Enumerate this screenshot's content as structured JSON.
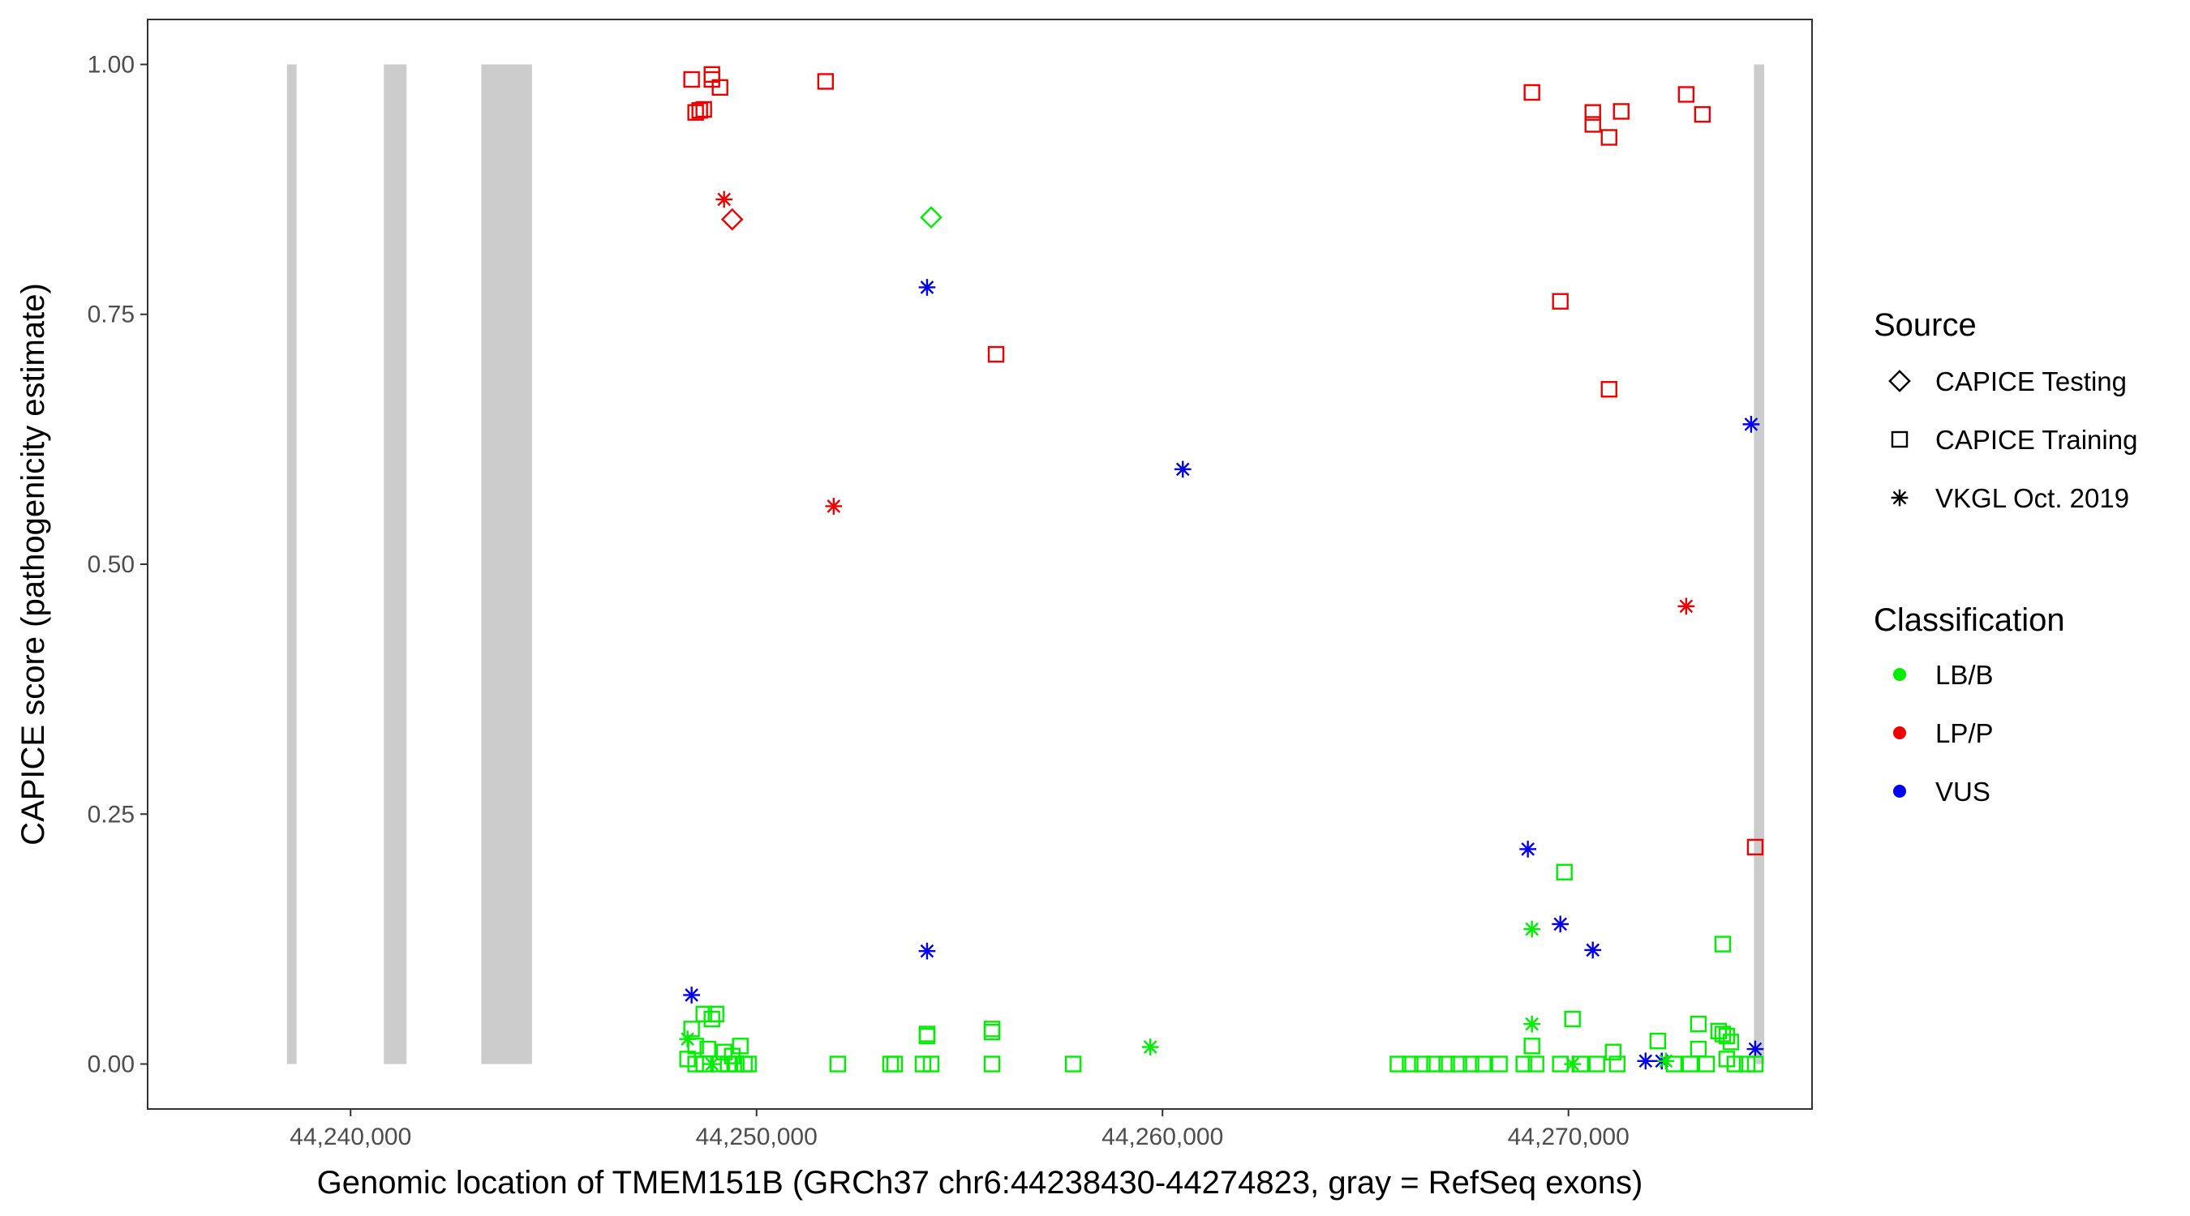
{
  "chart_data": {
    "type": "scatter",
    "xlabel": "Genomic location of TMEM151B (GRCh37 chr6:44238430-44274823, gray = RefSeq exons)",
    "ylabel": "CAPICE score (pathogenicity estimate)",
    "xlim": [
      44235000,
      44276000
    ],
    "ylim": [
      -0.045,
      1.045
    ],
    "x_ticks": [
      44240000,
      44250000,
      44260000,
      44270000
    ],
    "x_tick_labels": [
      "44,240,000",
      "44,250,000",
      "44,260,000",
      "44,270,000"
    ],
    "y_ticks": [
      0,
      0.25,
      0.5,
      0.75,
      1.0
    ],
    "y_tick_labels": [
      "0.00",
      "0.25",
      "0.50",
      "0.75",
      "1.00"
    ],
    "grid": false,
    "exons": [
      {
        "start": 44238430,
        "end": 44238650
      },
      {
        "start": 44240820,
        "end": 44241380
      },
      {
        "start": 44243220,
        "end": 44244470
      },
      {
        "start": 44274570,
        "end": 44274823
      }
    ],
    "colors": {
      "LB/B": "#00ee00",
      "LP/P": "#ee0000",
      "VUS": "#0000ee",
      "exon": "#cccccc"
    },
    "legend": {
      "placement": "right",
      "source": {
        "title": "Source",
        "items": [
          {
            "label": "CAPICE Testing",
            "shape": "diamond"
          },
          {
            "label": "CAPICE Training",
            "shape": "square"
          },
          {
            "label": "VKGL Oct. 2019",
            "shape": "asterisk"
          }
        ]
      },
      "classification": {
        "title": "Classification",
        "items": [
          {
            "label": "LB/B",
            "color": "#00ee00"
          },
          {
            "label": "LP/P",
            "color": "#ee0000"
          },
          {
            "label": "VUS",
            "color": "#0000ee"
          }
        ]
      }
    },
    "points": [
      {
        "x": 44248400,
        "y": 0.985,
        "shape": "square",
        "cls": "LP/P"
      },
      {
        "x": 44248900,
        "y": 0.99,
        "shape": "square",
        "cls": "LP/P"
      },
      {
        "x": 44248900,
        "y": 0.985,
        "shape": "square",
        "cls": "LP/P"
      },
      {
        "x": 44249100,
        "y": 0.977,
        "shape": "square",
        "cls": "LP/P"
      },
      {
        "x": 44248500,
        "y": 0.952,
        "shape": "square",
        "cls": "LP/P"
      },
      {
        "x": 44248600,
        "y": 0.954,
        "shape": "square",
        "cls": "LP/P"
      },
      {
        "x": 44248700,
        "y": 0.955,
        "shape": "square",
        "cls": "LP/P"
      },
      {
        "x": 44251700,
        "y": 0.983,
        "shape": "square",
        "cls": "LP/P"
      },
      {
        "x": 44249200,
        "y": 0.865,
        "shape": "asterisk",
        "cls": "LP/P"
      },
      {
        "x": 44249400,
        "y": 0.845,
        "shape": "diamond",
        "cls": "LP/P"
      },
      {
        "x": 44254300,
        "y": 0.847,
        "shape": "diamond",
        "cls": "LB/B"
      },
      {
        "x": 44254200,
        "y": 0.777,
        "shape": "asterisk",
        "cls": "VUS"
      },
      {
        "x": 44255900,
        "y": 0.71,
        "shape": "square",
        "cls": "LP/P"
      },
      {
        "x": 44251900,
        "y": 0.558,
        "shape": "asterisk",
        "cls": "LP/P"
      },
      {
        "x": 44260500,
        "y": 0.595,
        "shape": "asterisk",
        "cls": "VUS"
      },
      {
        "x": 44269100,
        "y": 0.972,
        "shape": "square",
        "cls": "LP/P"
      },
      {
        "x": 44270600,
        "y": 0.952,
        "shape": "square",
        "cls": "LP/P"
      },
      {
        "x": 44270600,
        "y": 0.94,
        "shape": "square",
        "cls": "LP/P"
      },
      {
        "x": 44271000,
        "y": 0.927,
        "shape": "square",
        "cls": "LP/P"
      },
      {
        "x": 44271300,
        "y": 0.953,
        "shape": "square",
        "cls": "LP/P"
      },
      {
        "x": 44272900,
        "y": 0.97,
        "shape": "square",
        "cls": "LP/P"
      },
      {
        "x": 44273300,
        "y": 0.95,
        "shape": "square",
        "cls": "LP/P"
      },
      {
        "x": 44269800,
        "y": 0.763,
        "shape": "square",
        "cls": "LP/P"
      },
      {
        "x": 44271000,
        "y": 0.675,
        "shape": "square",
        "cls": "LP/P"
      },
      {
        "x": 44274500,
        "y": 0.64,
        "shape": "asterisk",
        "cls": "VUS"
      },
      {
        "x": 44272900,
        "y": 0.458,
        "shape": "asterisk",
        "cls": "LP/P"
      },
      {
        "x": 44274600,
        "y": 0.217,
        "shape": "square",
        "cls": "LP/P"
      },
      {
        "x": 44269000,
        "y": 0.215,
        "shape": "asterisk",
        "cls": "VUS"
      },
      {
        "x": 44269900,
        "y": 0.192,
        "shape": "square",
        "cls": "LB/B"
      },
      {
        "x": 44269100,
        "y": 0.135,
        "shape": "asterisk",
        "cls": "LB/B"
      },
      {
        "x": 44269800,
        "y": 0.14,
        "shape": "asterisk",
        "cls": "VUS"
      },
      {
        "x": 44270600,
        "y": 0.114,
        "shape": "asterisk",
        "cls": "VUS"
      },
      {
        "x": 44273800,
        "y": 0.12,
        "shape": "square",
        "cls": "LB/B"
      },
      {
        "x": 44254200,
        "y": 0.113,
        "shape": "asterisk",
        "cls": "VUS"
      },
      {
        "x": 44248400,
        "y": 0.069,
        "shape": "asterisk",
        "cls": "VUS"
      },
      {
        "x": 44248700,
        "y": 0.05,
        "shape": "square",
        "cls": "LB/B"
      },
      {
        "x": 44249000,
        "y": 0.05,
        "shape": "square",
        "cls": "LB/B"
      },
      {
        "x": 44248900,
        "y": 0.045,
        "shape": "square",
        "cls": "LB/B"
      },
      {
        "x": 44248400,
        "y": 0.035,
        "shape": "square",
        "cls": "LB/B"
      },
      {
        "x": 44248300,
        "y": 0.025,
        "shape": "asterisk",
        "cls": "LB/B"
      },
      {
        "x": 44248500,
        "y": 0.018,
        "shape": "square",
        "cls": "LB/B"
      },
      {
        "x": 44248800,
        "y": 0.015,
        "shape": "square",
        "cls": "LB/B"
      },
      {
        "x": 44249200,
        "y": 0.012,
        "shape": "square",
        "cls": "LB/B"
      },
      {
        "x": 44249600,
        "y": 0.018,
        "shape": "square",
        "cls": "LB/B"
      },
      {
        "x": 44249400,
        "y": 0.008,
        "shape": "square",
        "cls": "LB/B"
      },
      {
        "x": 44248300,
        "y": 0.005,
        "shape": "square",
        "cls": "LB/B"
      },
      {
        "x": 44248500,
        "y": 0.0,
        "shape": "square",
        "cls": "LB/B"
      },
      {
        "x": 44248700,
        "y": 0.0,
        "shape": "square",
        "cls": "LB/B"
      },
      {
        "x": 44248900,
        "y": 0.0,
        "shape": "asterisk",
        "cls": "LB/B"
      },
      {
        "x": 44249100,
        "y": 0.0,
        "shape": "square",
        "cls": "LB/B"
      },
      {
        "x": 44249300,
        "y": 0.0,
        "shape": "square",
        "cls": "LB/B"
      },
      {
        "x": 44249500,
        "y": 0.0,
        "shape": "square",
        "cls": "LB/B"
      },
      {
        "x": 44249700,
        "y": 0.0,
        "shape": "square",
        "cls": "LB/B"
      },
      {
        "x": 44249800,
        "y": 0.0,
        "shape": "square",
        "cls": "LB/B"
      },
      {
        "x": 44252000,
        "y": 0.0,
        "shape": "square",
        "cls": "LB/B"
      },
      {
        "x": 44253300,
        "y": 0.0,
        "shape": "square",
        "cls": "LB/B"
      },
      {
        "x": 44253400,
        "y": 0.0,
        "shape": "square",
        "cls": "LB/B"
      },
      {
        "x": 44254200,
        "y": 0.03,
        "shape": "square",
        "cls": "LB/B"
      },
      {
        "x": 44254200,
        "y": 0.028,
        "shape": "square",
        "cls": "LB/B"
      },
      {
        "x": 44254100,
        "y": 0.0,
        "shape": "square",
        "cls": "LB/B"
      },
      {
        "x": 44254300,
        "y": 0.0,
        "shape": "square",
        "cls": "LB/B"
      },
      {
        "x": 44255800,
        "y": 0.035,
        "shape": "square",
        "cls": "LB/B"
      },
      {
        "x": 44255800,
        "y": 0.032,
        "shape": "square",
        "cls": "LB/B"
      },
      {
        "x": 44255800,
        "y": 0.0,
        "shape": "square",
        "cls": "LB/B"
      },
      {
        "x": 44257800,
        "y": 0.0,
        "shape": "square",
        "cls": "LB/B"
      },
      {
        "x": 44259700,
        "y": 0.017,
        "shape": "asterisk",
        "cls": "LB/B"
      },
      {
        "x": 44265800,
        "y": 0.0,
        "shape": "square",
        "cls": "LB/B"
      },
      {
        "x": 44266100,
        "y": 0.0,
        "shape": "square",
        "cls": "LB/B"
      },
      {
        "x": 44266400,
        "y": 0.0,
        "shape": "square",
        "cls": "LB/B"
      },
      {
        "x": 44266700,
        "y": 0.0,
        "shape": "square",
        "cls": "LB/B"
      },
      {
        "x": 44267000,
        "y": 0.0,
        "shape": "square",
        "cls": "LB/B"
      },
      {
        "x": 44267300,
        "y": 0.0,
        "shape": "square",
        "cls": "LB/B"
      },
      {
        "x": 44267600,
        "y": 0.0,
        "shape": "square",
        "cls": "LB/B"
      },
      {
        "x": 44267900,
        "y": 0.0,
        "shape": "square",
        "cls": "LB/B"
      },
      {
        "x": 44268300,
        "y": 0.0,
        "shape": "square",
        "cls": "LB/B"
      },
      {
        "x": 44268900,
        "y": 0.0,
        "shape": "square",
        "cls": "LB/B"
      },
      {
        "x": 44269100,
        "y": 0.04,
        "shape": "asterisk",
        "cls": "LB/B"
      },
      {
        "x": 44269100,
        "y": 0.018,
        "shape": "square",
        "cls": "LB/B"
      },
      {
        "x": 44269200,
        "y": 0.0,
        "shape": "square",
        "cls": "LB/B"
      },
      {
        "x": 44269800,
        "y": 0.0,
        "shape": "square",
        "cls": "LB/B"
      },
      {
        "x": 44270100,
        "y": 0.045,
        "shape": "square",
        "cls": "LB/B"
      },
      {
        "x": 44270100,
        "y": 0.0,
        "shape": "asterisk",
        "cls": "LB/B"
      },
      {
        "x": 44270300,
        "y": 0.0,
        "shape": "square",
        "cls": "LB/B"
      },
      {
        "x": 44270700,
        "y": 0.0,
        "shape": "square",
        "cls": "LB/B"
      },
      {
        "x": 44271100,
        "y": 0.012,
        "shape": "square",
        "cls": "LB/B"
      },
      {
        "x": 44271200,
        "y": 0.0,
        "shape": "square",
        "cls": "LB/B"
      },
      {
        "x": 44271900,
        "y": 0.003,
        "shape": "asterisk",
        "cls": "VUS"
      },
      {
        "x": 44272200,
        "y": 0.023,
        "shape": "square",
        "cls": "LB/B"
      },
      {
        "x": 44272300,
        "y": 0.003,
        "shape": "asterisk",
        "cls": "VUS"
      },
      {
        "x": 44272400,
        "y": 0.003,
        "shape": "asterisk",
        "cls": "LB/B"
      },
      {
        "x": 44272600,
        "y": 0.0,
        "shape": "square",
        "cls": "LB/B"
      },
      {
        "x": 44273000,
        "y": 0.0,
        "shape": "square",
        "cls": "LB/B"
      },
      {
        "x": 44273200,
        "y": 0.04,
        "shape": "square",
        "cls": "LB/B"
      },
      {
        "x": 44273200,
        "y": 0.015,
        "shape": "square",
        "cls": "LB/B"
      },
      {
        "x": 44273400,
        "y": 0.0,
        "shape": "square",
        "cls": "LB/B"
      },
      {
        "x": 44273700,
        "y": 0.033,
        "shape": "square",
        "cls": "LB/B"
      },
      {
        "x": 44273800,
        "y": 0.03,
        "shape": "square",
        "cls": "LB/B"
      },
      {
        "x": 44273900,
        "y": 0.028,
        "shape": "square",
        "cls": "LB/B"
      },
      {
        "x": 44274000,
        "y": 0.022,
        "shape": "square",
        "cls": "LB/B"
      },
      {
        "x": 44273900,
        "y": 0.005,
        "shape": "square",
        "cls": "LB/B"
      },
      {
        "x": 44274100,
        "y": 0.0,
        "shape": "square",
        "cls": "LB/B"
      },
      {
        "x": 44274400,
        "y": 0.0,
        "shape": "square",
        "cls": "LB/B"
      },
      {
        "x": 44274600,
        "y": 0.015,
        "shape": "asterisk",
        "cls": "VUS"
      },
      {
        "x": 44274600,
        "y": 0.0,
        "shape": "square",
        "cls": "LB/B"
      }
    ]
  }
}
